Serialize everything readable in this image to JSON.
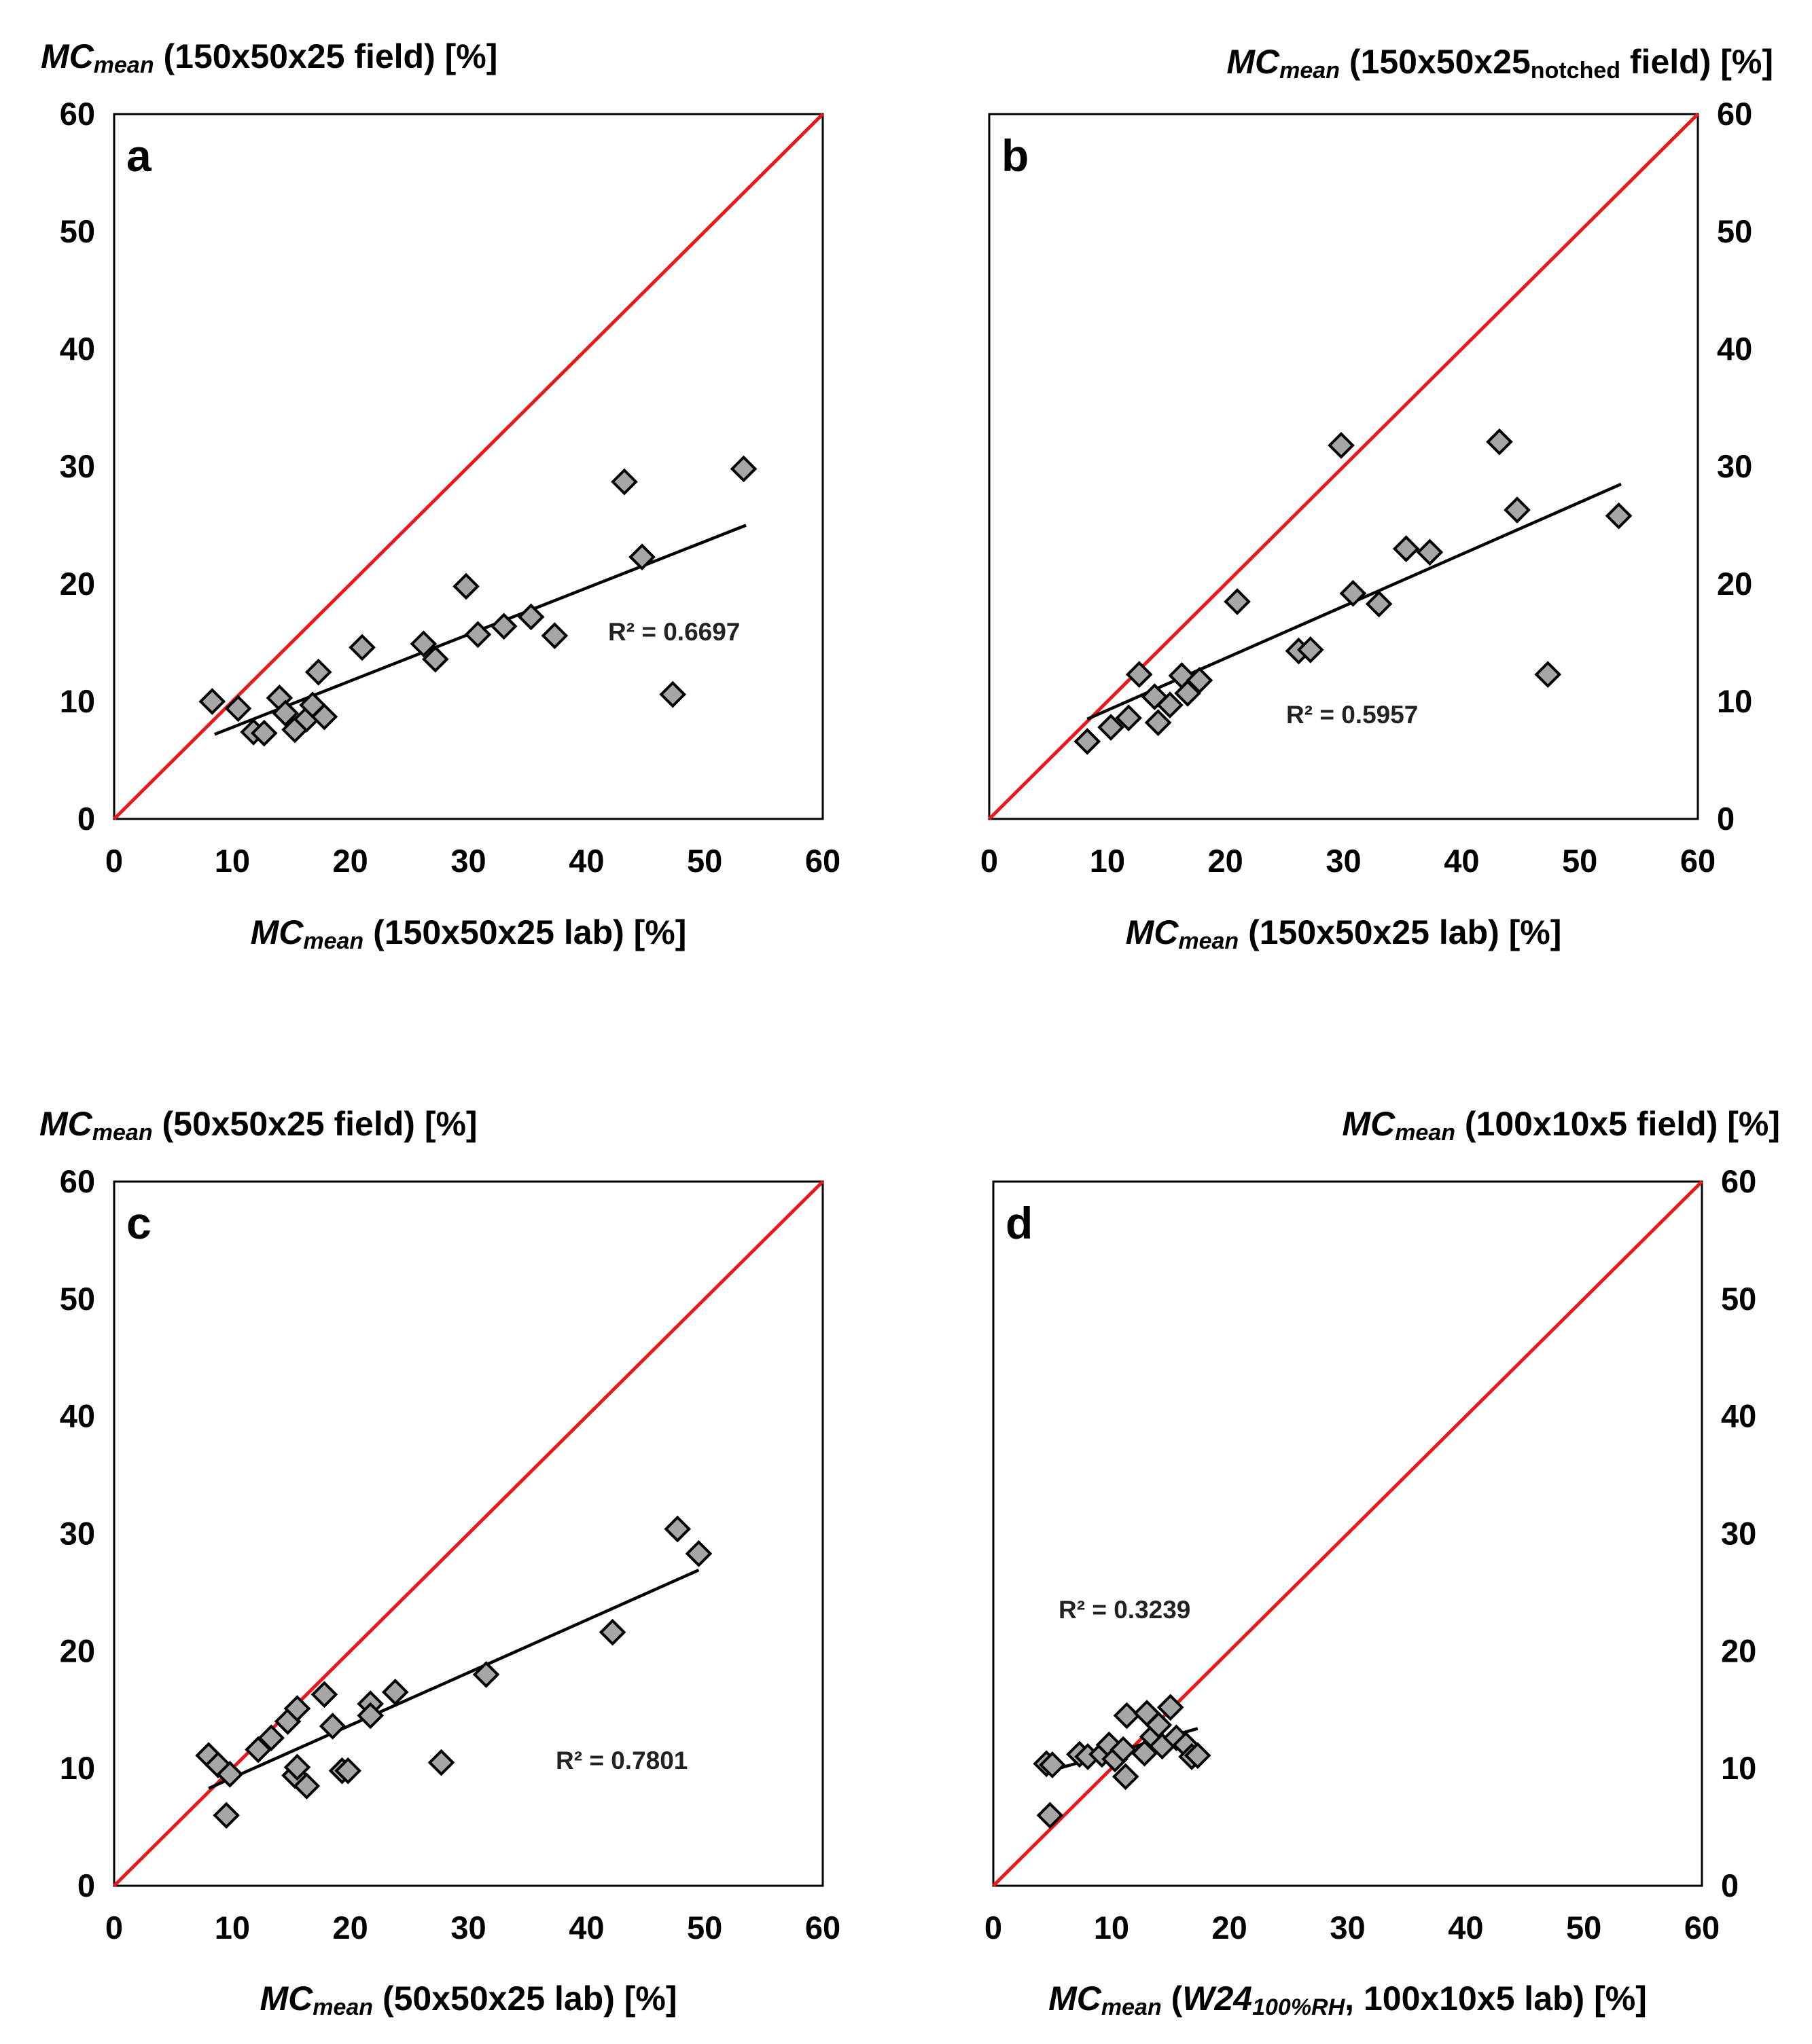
{
  "colors": {
    "identity": "#e8191d",
    "trend": "#000000",
    "marker_fill": "#a6a6a6",
    "marker_edge": "#000000",
    "frame": "#000000"
  },
  "chart_data": [
    {
      "type": "scatter",
      "panel": "a",
      "title": "",
      "ylabel": {
        "main": "MC",
        "sub": "mean",
        "rest": " (150x50x25 field) [%]"
      },
      "xlabel": {
        "main": "MC",
        "sub": "mean",
        "rest": " (150x50x25 lab) [%]"
      },
      "yaxis_side": "left",
      "xlim": [
        0,
        60
      ],
      "ylim": [
        0,
        60
      ],
      "ticks": [
        "0",
        "10",
        "20",
        "30",
        "40",
        "50",
        "60"
      ],
      "r2_label": "R² = 0.6697",
      "identity_line": true,
      "trendline": {
        "x": [
          8.5,
          53.5
        ],
        "y": [
          7.2,
          25.0
        ]
      },
      "points": [
        {
          "x": 8.3,
          "y": 10.0
        },
        {
          "x": 10.5,
          "y": 9.4
        },
        {
          "x": 11.8,
          "y": 7.4
        },
        {
          "x": 12.7,
          "y": 7.3
        },
        {
          "x": 14.0,
          "y": 10.3
        },
        {
          "x": 14.5,
          "y": 9.0
        },
        {
          "x": 15.3,
          "y": 7.6
        },
        {
          "x": 16.3,
          "y": 8.5
        },
        {
          "x": 16.8,
          "y": 9.7
        },
        {
          "x": 17.3,
          "y": 12.5
        },
        {
          "x": 17.8,
          "y": 8.7
        },
        {
          "x": 21.0,
          "y": 14.6
        },
        {
          "x": 26.2,
          "y": 14.9
        },
        {
          "x": 27.2,
          "y": 13.6
        },
        {
          "x": 29.8,
          "y": 19.8
        },
        {
          "x": 30.8,
          "y": 15.7
        },
        {
          "x": 33.0,
          "y": 16.4
        },
        {
          "x": 35.3,
          "y": 17.2
        },
        {
          "x": 37.3,
          "y": 15.6
        },
        {
          "x": 43.2,
          "y": 28.7
        },
        {
          "x": 44.7,
          "y": 22.3
        },
        {
          "x": 47.3,
          "y": 10.6
        },
        {
          "x": 53.3,
          "y": 29.8
        }
      ]
    },
    {
      "type": "scatter",
      "panel": "b",
      "title": "",
      "ylabel": {
        "main": "MC",
        "sub": "mean",
        "rest": " (150x50x25",
        "sub2": "notched",
        "rest2": " field) [%]"
      },
      "xlabel": {
        "main": "MC",
        "sub": "mean",
        "rest": " (150x50x25 lab) [%]"
      },
      "yaxis_side": "right",
      "xlim": [
        0,
        60
      ],
      "ylim": [
        0,
        60
      ],
      "ticks": [
        "0",
        "10",
        "20",
        "30",
        "40",
        "50",
        "60"
      ],
      "r2_label": "R² = 0.5957",
      "identity_line": true,
      "trendline": {
        "x": [
          8.3,
          53.5
        ],
        "y": [
          8.5,
          28.5
        ]
      },
      "points": [
        {
          "x": 8.3,
          "y": 6.6
        },
        {
          "x": 10.3,
          "y": 7.8
        },
        {
          "x": 11.8,
          "y": 8.6
        },
        {
          "x": 12.7,
          "y": 12.3
        },
        {
          "x": 14.0,
          "y": 10.4
        },
        {
          "x": 14.3,
          "y": 8.2
        },
        {
          "x": 15.3,
          "y": 9.7
        },
        {
          "x": 16.3,
          "y": 12.2
        },
        {
          "x": 16.8,
          "y": 10.7
        },
        {
          "x": 17.8,
          "y": 11.8
        },
        {
          "x": 21.0,
          "y": 18.5
        },
        {
          "x": 26.2,
          "y": 14.3
        },
        {
          "x": 27.2,
          "y": 14.4
        },
        {
          "x": 29.8,
          "y": 31.8
        },
        {
          "x": 30.8,
          "y": 19.2
        },
        {
          "x": 33.0,
          "y": 18.3
        },
        {
          "x": 35.3,
          "y": 23.0
        },
        {
          "x": 37.3,
          "y": 22.7
        },
        {
          "x": 43.2,
          "y": 32.1
        },
        {
          "x": 44.7,
          "y": 26.3
        },
        {
          "x": 47.3,
          "y": 12.3
        },
        {
          "x": 53.3,
          "y": 25.8
        }
      ]
    },
    {
      "type": "scatter",
      "panel": "c",
      "title": "",
      "ylabel": {
        "main": "MC",
        "sub": "mean",
        "rest": " (50x50x25 field) [%]"
      },
      "xlabel": {
        "main": "MC",
        "sub": "mean",
        "rest": " (50x50x25 lab) [%]"
      },
      "yaxis_side": "left",
      "xlim": [
        0,
        60
      ],
      "ylim": [
        0,
        60
      ],
      "ticks": [
        "0",
        "10",
        "20",
        "30",
        "40",
        "50",
        "60"
      ],
      "r2_label": "R² = 0.7801",
      "identity_line": true,
      "trendline": {
        "x": [
          8.0,
          49.5
        ],
        "y": [
          8.3,
          26.9
        ]
      },
      "points": [
        {
          "x": 8.0,
          "y": 11.1
        },
        {
          "x": 8.8,
          "y": 10.3
        },
        {
          "x": 9.5,
          "y": 6.0
        },
        {
          "x": 9.8,
          "y": 9.5
        },
        {
          "x": 12.2,
          "y": 11.6
        },
        {
          "x": 13.3,
          "y": 12.6
        },
        {
          "x": 14.7,
          "y": 14.0
        },
        {
          "x": 15.5,
          "y": 15.1
        },
        {
          "x": 15.3,
          "y": 9.4
        },
        {
          "x": 15.5,
          "y": 10.1
        },
        {
          "x": 16.3,
          "y": 8.5
        },
        {
          "x": 17.8,
          "y": 16.3
        },
        {
          "x": 18.5,
          "y": 13.6
        },
        {
          "x": 19.3,
          "y": 9.8
        },
        {
          "x": 19.8,
          "y": 9.8
        },
        {
          "x": 21.7,
          "y": 15.5
        },
        {
          "x": 21.7,
          "y": 14.5
        },
        {
          "x": 23.8,
          "y": 16.5
        },
        {
          "x": 27.7,
          "y": 10.5
        },
        {
          "x": 31.5,
          "y": 18.0
        },
        {
          "x": 42.2,
          "y": 21.6
        },
        {
          "x": 47.7,
          "y": 30.4
        },
        {
          "x": 49.5,
          "y": 28.3
        }
      ]
    },
    {
      "type": "scatter",
      "panel": "d",
      "title": "",
      "ylabel": {
        "main": "MC",
        "sub": "mean",
        "rest": " (100x10x5 field) [%]"
      },
      "xlabel": {
        "main": "MC",
        "sub": "mean",
        "rest": " (",
        "ital": "W24",
        "isub": "100%RH",
        "rest2": ", 100x10x5 lab) [%]"
      },
      "yaxis_side": "right",
      "xlim": [
        0,
        60
      ],
      "ylim": [
        0,
        60
      ],
      "ticks": [
        "0",
        "10",
        "20",
        "30",
        "40",
        "50",
        "60"
      ],
      "r2_label": "R² = 0.3239",
      "identity_line": true,
      "trendline": {
        "x": [
          4.5,
          17.3
        ],
        "y": [
          9.7,
          13.4
        ]
      },
      "points": [
        {
          "x": 4.5,
          "y": 10.4
        },
        {
          "x": 5.0,
          "y": 10.3
        },
        {
          "x": 4.8,
          "y": 6.0
        },
        {
          "x": 7.3,
          "y": 11.2
        },
        {
          "x": 8.0,
          "y": 11.0
        },
        {
          "x": 9.2,
          "y": 11.2
        },
        {
          "x": 9.8,
          "y": 12.0
        },
        {
          "x": 10.3,
          "y": 10.8
        },
        {
          "x": 11.0,
          "y": 11.6
        },
        {
          "x": 11.3,
          "y": 14.5
        },
        {
          "x": 11.2,
          "y": 9.3
        },
        {
          "x": 12.8,
          "y": 11.3
        },
        {
          "x": 13.0,
          "y": 14.7
        },
        {
          "x": 13.5,
          "y": 12.7
        },
        {
          "x": 14.0,
          "y": 13.7
        },
        {
          "x": 14.3,
          "y": 11.9
        },
        {
          "x": 15.0,
          "y": 15.2
        },
        {
          "x": 15.5,
          "y": 12.6
        },
        {
          "x": 16.3,
          "y": 12.0
        },
        {
          "x": 16.8,
          "y": 11.0
        },
        {
          "x": 17.3,
          "y": 11.1
        }
      ]
    }
  ]
}
